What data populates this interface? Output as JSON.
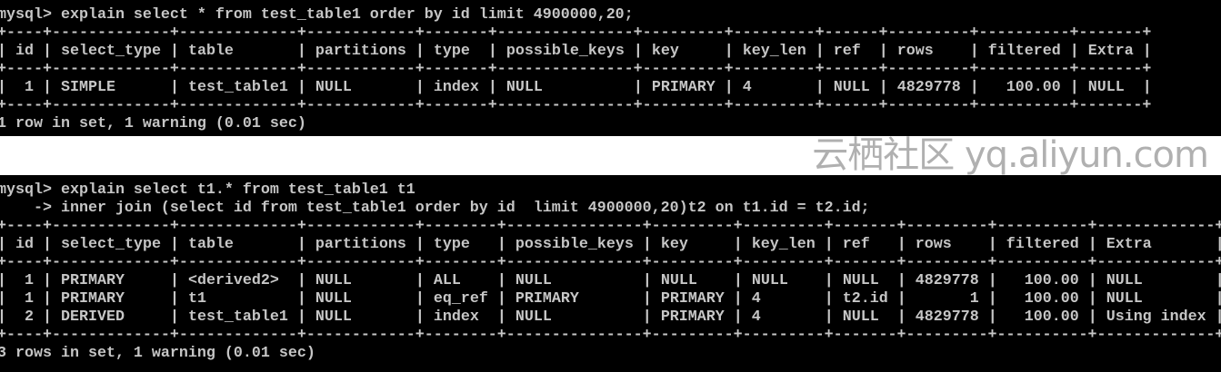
{
  "panels": [
    {
      "command_lines": [
        "mysql> explain select * from test_table1 order by id limit 4900000,20;"
      ],
      "columns": [
        "id",
        "select_type",
        "table",
        "partitions",
        "type",
        "possible_keys",
        "key",
        "key_len",
        "ref",
        "rows",
        "filtered",
        "Extra"
      ],
      "rows": [
        [
          "1",
          "SIMPLE",
          "test_table1",
          "NULL",
          "index",
          "NULL",
          "PRIMARY",
          "4",
          "NULL",
          "4829778",
          "100.00",
          "NULL"
        ]
      ],
      "footer": "1 row in set, 1 warning (0.01 sec)"
    },
    {
      "command_lines": [
        "mysql> explain select t1.* from test_table1 t1",
        "    -> inner join (select id from test_table1 order by id  limit 4900000,20)t2 on t1.id = t2.id;"
      ],
      "columns": [
        "id",
        "select_type",
        "table",
        "partitions",
        "type",
        "possible_keys",
        "key",
        "key_len",
        "ref",
        "rows",
        "filtered",
        "Extra"
      ],
      "rows": [
        [
          "1",
          "PRIMARY",
          "<derived2>",
          "NULL",
          "ALL",
          "NULL",
          "NULL",
          "NULL",
          "NULL",
          "4829778",
          "100.00",
          "NULL"
        ],
        [
          "1",
          "PRIMARY",
          "t1",
          "NULL",
          "eq_ref",
          "PRIMARY",
          "PRIMARY",
          "4",
          "t2.id",
          "1",
          "100.00",
          "NULL"
        ],
        [
          "2",
          "DERIVED",
          "test_table1",
          "NULL",
          "index",
          "NULL",
          "PRIMARY",
          "4",
          "NULL",
          "4829778",
          "100.00",
          "Using index"
        ]
      ],
      "footer": "3 rows in set, 1 warning (0.01 sec)"
    }
  ],
  "watermark": "云栖社区 yq.aliyun.com",
  "colors": {
    "terminal_bg": "#000000",
    "terminal_text": "#c6c6c6",
    "page_bg": "#ffffff"
  }
}
